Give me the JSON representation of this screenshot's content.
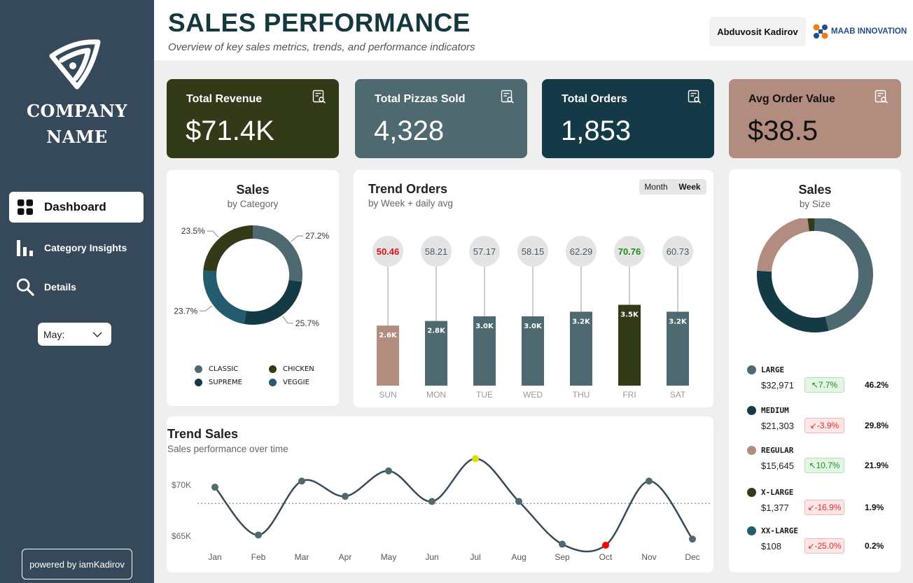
{
  "sidebar": {
    "company_line1": "COMPANY",
    "company_line2": "NAME",
    "nav": [
      {
        "label": "Dashboard",
        "icon": "grid-icon"
      },
      {
        "label": "Category Insights",
        "icon": "bar-chart-icon"
      },
      {
        "label": "Details",
        "icon": "search-icon"
      }
    ],
    "month_select": "May:",
    "powered_by": "powered by iamKadirov"
  },
  "header": {
    "title": "SALES PERFORMANCE",
    "subtitle": "Overview of key sales metrics, trends, and performance indicators",
    "author": "Abduvosit Kadirov",
    "brand": "MAAB INNOVATION"
  },
  "kpis": [
    {
      "label": "Total Revenue",
      "value": "$71.4K",
      "color": "#333a18"
    },
    {
      "label": "Total Pizzas Sold",
      "value": "4,328",
      "color": "#4e6970"
    },
    {
      "label": "Total Orders",
      "value": "1,853",
      "color": "#153a47"
    },
    {
      "label": "Avg Order Value",
      "value": "$38.5",
      "color": "#b38c80"
    }
  ],
  "sales_category": {
    "title": "Sales",
    "subtitle": "by Category",
    "legend": [
      {
        "label": "CLASSIC",
        "color": "#4e6970"
      },
      {
        "label": "CHICKEN",
        "color": "#333a18"
      },
      {
        "label": "SUPREME",
        "color": "#153a47"
      },
      {
        "label": "VEGGIE",
        "color": "#235c6e"
      }
    ]
  },
  "trend_orders": {
    "title": "Trend Orders",
    "subtitle": "by Week + daily avg",
    "toggle": [
      "Month",
      "Week"
    ]
  },
  "trend_sales": {
    "title": "Trend Sales",
    "subtitle": "Sales performance over time"
  },
  "sales_size": {
    "title": "Sales",
    "subtitle": "by Size",
    "rows": [
      {
        "name": "LARGE",
        "value": "$32,971",
        "delta": "↖7.7%",
        "dir": "up",
        "pct": "46.2%",
        "color": "#4e6970"
      },
      {
        "name": "MEDIUM",
        "value": "$21,303",
        "delta": "↙-3.9%",
        "dir": "down",
        "pct": "29.8%",
        "color": "#153a47"
      },
      {
        "name": "REGULAR",
        "value": "$15,645",
        "delta": "↖10.7%",
        "dir": "up",
        "pct": "21.9%",
        "color": "#b38c80"
      },
      {
        "name": "X-LARGE",
        "value": "$1,377",
        "delta": "↙-16.9%",
        "dir": "down",
        "pct": "1.9%",
        "color": "#333a18"
      },
      {
        "name": "XX-LARGE",
        "value": "$108",
        "delta": "↙-25.0%",
        "dir": "down",
        "pct": "0.2%",
        "color": "#235c6e"
      }
    ]
  },
  "chart_data": [
    {
      "type": "pie",
      "title": "Sales",
      "subtitle": "by Category",
      "categories": [
        "CLASSIC",
        "SUPREME",
        "VEGGIE",
        "CHICKEN"
      ],
      "values": [
        27.2,
        25.7,
        23.7,
        23.5
      ],
      "labels": [
        "27.2%",
        "25.7%",
        "23.7%",
        "23.5%"
      ],
      "colors": [
        "#4e6970",
        "#153a47",
        "#235c6e",
        "#333a18"
      ]
    },
    {
      "type": "bar",
      "title": "Trend Orders",
      "subtitle": "by Week + daily avg",
      "categories": [
        "SUN",
        "MON",
        "TUE",
        "WED",
        "THU",
        "FRI",
        "SAT"
      ],
      "values": [
        2.6,
        2.8,
        3.0,
        3.0,
        3.2,
        3.5,
        3.2
      ],
      "value_labels": [
        "2.6K",
        "2.8K",
        "3.0K",
        "3.0K",
        "3.2K",
        "3.5K",
        "3.2K"
      ],
      "daily_avg": [
        "50.46",
        "58.21",
        "57.17",
        "58.15",
        "62.29",
        "70.76",
        "60.73"
      ],
      "highlight_max": "FRI",
      "highlight_min": "SUN",
      "colors": {
        "default": "#4e6970",
        "max": "#333a18",
        "min": "#b38c80",
        "max_text": "#1e8f1e",
        "min_text": "#e01010"
      }
    },
    {
      "type": "line",
      "title": "Trend Sales",
      "subtitle": "Sales performance over time",
      "categories": [
        "Jan",
        "Feb",
        "Mar",
        "Apr",
        "May",
        "Jun",
        "Jul",
        "Aug",
        "Sep",
        "Oct",
        "Nov",
        "Dec"
      ],
      "values": [
        69.8,
        65.1,
        70.4,
        68.9,
        71.4,
        68.4,
        72.6,
        68.4,
        64.2,
        64.1,
        70.4,
        64.7
      ],
      "y_ticks": [
        65,
        70
      ],
      "y_tick_labels": [
        "$65K",
        "$70K"
      ],
      "ylim": [
        63.0,
        74.0
      ],
      "average": 68.2,
      "max_month": "Jul",
      "min_month": "Oct",
      "colors": {
        "line": "#364a58",
        "max": "#d8e000",
        "min": "#ff0000"
      }
    },
    {
      "type": "pie",
      "title": "Sales",
      "subtitle": "by Size",
      "categories": [
        "LARGE",
        "MEDIUM",
        "REGULAR",
        "X-LARGE",
        "XX-LARGE"
      ],
      "values": [
        46.2,
        29.8,
        21.9,
        1.9,
        0.2
      ],
      "colors": [
        "#4e6970",
        "#153a47",
        "#b38c80",
        "#333a18",
        "#235c6e"
      ]
    }
  ]
}
